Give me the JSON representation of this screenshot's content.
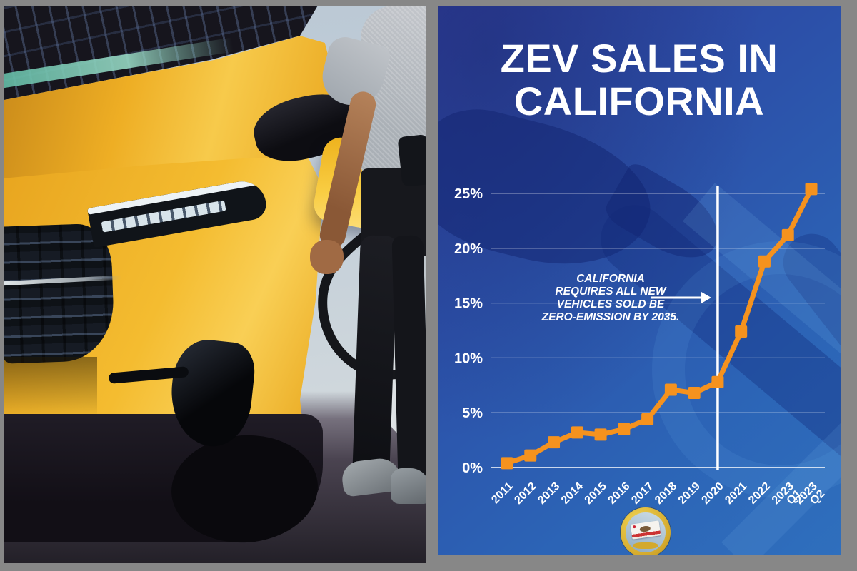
{
  "frame": {
    "bg_color": "#878787"
  },
  "photo": {
    "subject": "yellow-ev-being-charged",
    "colors": {
      "car_yellow": "#F2B524",
      "sky": "#C3CFD8",
      "shirt_gray": "#B7BCC2",
      "jeans_black": "#16171C",
      "asphalt": "#2A2530",
      "charge_flap_yellow": "#F8CC3F"
    }
  },
  "card": {
    "title_line1": "ZEV SALES IN",
    "title_line2": "CALIFORNIA",
    "colors": {
      "bg_top": "#2E3F9C",
      "bg_bottom": "#2E6CBB",
      "accent_orange": "#F5921E",
      "text": "#FFFFFF",
      "watermark_blue": "#1A2F7E"
    },
    "seal": {
      "label": "SEAL OF THE GOVERNOR OF THE STATE OF CALIFORNIA"
    }
  },
  "chart_data": {
    "type": "line",
    "title": "ZEV SALES IN CALIFORNIA",
    "categories": [
      "2011",
      "2012",
      "2013",
      "2014",
      "2015",
      "2016",
      "2017",
      "2018",
      "2019",
      "2020",
      "2021",
      "2022",
      "2023 Q1",
      "2023 Q2"
    ],
    "values": [
      0.4,
      1.1,
      2.3,
      3.2,
      3.0,
      3.5,
      4.4,
      7.1,
      6.8,
      7.8,
      12.4,
      18.8,
      21.2,
      25.4
    ],
    "unit": "%",
    "xlabel": "",
    "ylabel": "",
    "ylim": [
      0,
      26
    ],
    "yticks": [
      0,
      5,
      10,
      15,
      20,
      25
    ],
    "ytick_suffix": "%",
    "grid": true,
    "legend": "none",
    "line_color": "#F5921E",
    "marker": "square",
    "reference_line": {
      "at_category": "2020",
      "color": "#FFFFFF"
    },
    "annotation": {
      "lines": [
        "CALIFORNIA",
        "REQUIRES ALL NEW",
        "VEHICLES SOLD BE",
        "ZERO-EMISSION BY 2035."
      ],
      "arrow_points_to": "2020"
    }
  }
}
